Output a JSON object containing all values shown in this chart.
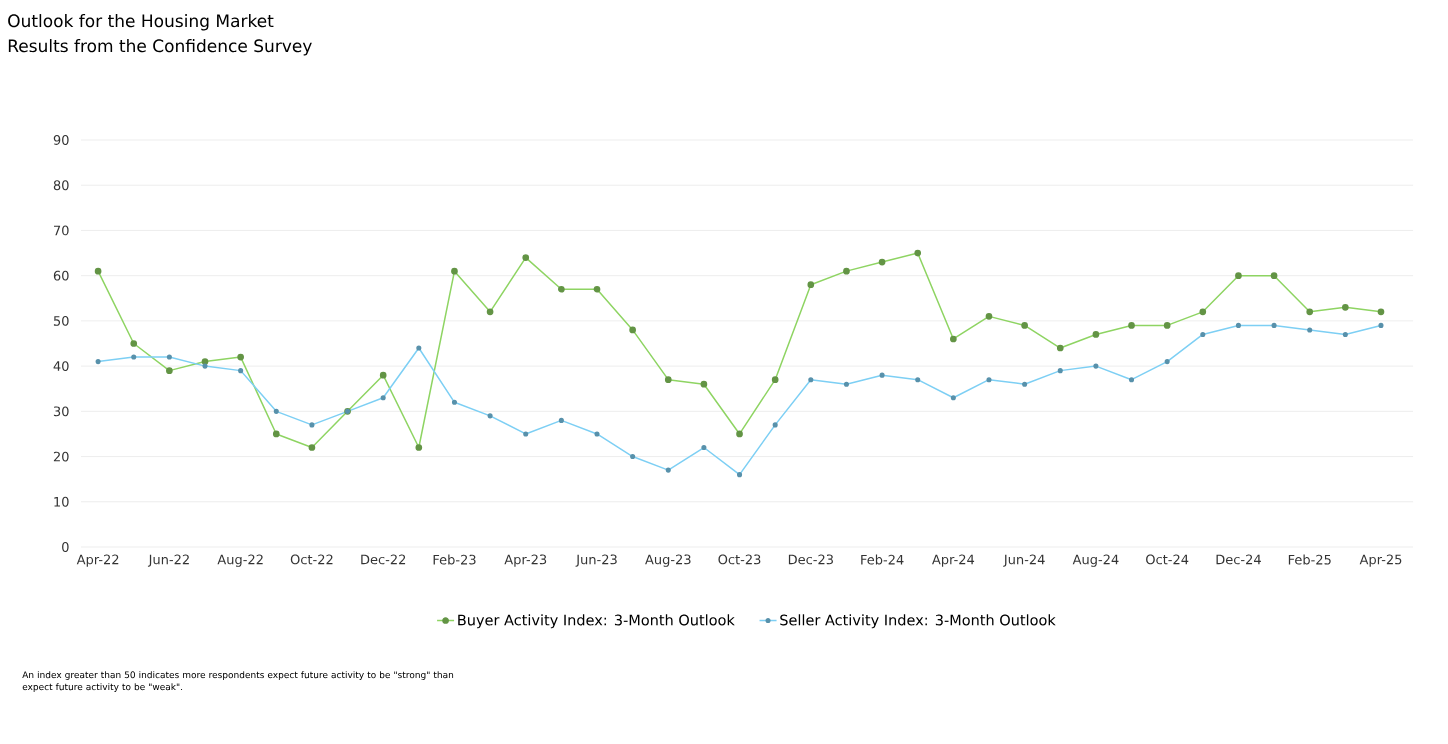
{
  "chart_data": {
    "type": "line",
    "title": "Outlook for the Housing Market",
    "subtitle": "Results from the Confidence Survey",
    "categories": [
      "Apr-22",
      null,
      "Jun-22",
      null,
      "Aug-22",
      null,
      "Oct-22",
      null,
      "Dec-22",
      null,
      "Feb-23",
      null,
      "Apr-23",
      null,
      "Jun-23",
      null,
      "Aug-23",
      null,
      "Oct-23",
      null,
      "Dec-23",
      null,
      "Feb-24",
      null,
      "Apr-24",
      null,
      "Jun-24",
      null,
      "Aug-24",
      null,
      "Oct-24",
      null,
      "Dec-24",
      null,
      "Feb-25",
      null,
      "Apr-25"
    ],
    "series": [
      {
        "name": "Buyer Activity Index: 3-Month Outlook",
        "color": "#8ed462",
        "values": [
          61,
          45,
          39,
          41,
          42,
          25,
          22,
          30,
          38,
          22,
          61,
          52,
          64,
          57,
          57,
          48,
          37,
          36,
          25,
          37,
          58,
          61,
          63,
          65,
          46,
          51,
          49,
          44,
          47,
          49,
          49,
          52,
          60,
          60,
          52,
          53,
          52
        ]
      },
      {
        "name": "Seller Activity Index: 3-Month Outlook",
        "color": "#7dcff4",
        "values": [
          41,
          42,
          42,
          40,
          39,
          30,
          27,
          30,
          33,
          44,
          32,
          29,
          25,
          28,
          25,
          20,
          17,
          22,
          16,
          27,
          37,
          36,
          38,
          37,
          33,
          37,
          36,
          39,
          40,
          37,
          41,
          47,
          49,
          49,
          48,
          47,
          49
        ]
      }
    ],
    "ylim": [
      0,
      90
    ],
    "yticks": [
      0,
      10,
      20,
      30,
      40,
      50,
      60,
      70,
      80,
      90
    ],
    "grid": "y",
    "legend": "bottom",
    "marker": "circle",
    "line_style": "solid",
    "annotations": [
      "An index greater than 50 indicates more respondents expect future activity to be \"strong\" than expect future activity to be \"weak\"."
    ]
  }
}
